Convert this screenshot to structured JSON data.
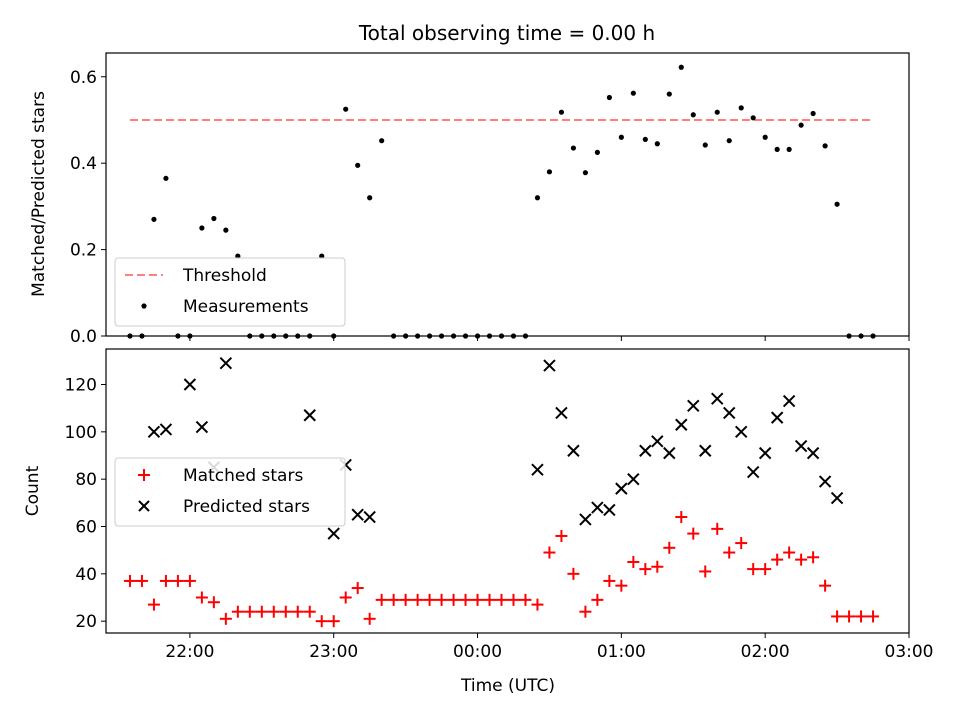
{
  "chart_data": [
    {
      "type": "scatter",
      "title": "Total observing time = 0.00 h",
      "ylabel": "Matched/Predicted stars",
      "xlabel": "",
      "xlim": [
        "21:25",
        "03:00"
      ],
      "ylim": [
        0,
        0.655
      ],
      "yticks": [
        "0.0",
        "0.2",
        "0.4",
        "0.6"
      ],
      "legend_position": "lower-left",
      "threshold": {
        "name": "Threshold",
        "value": 0.5,
        "x_start": "21:35",
        "x_end": "02:45",
        "color": "#ff7f7f",
        "style": "dashed"
      },
      "series": [
        {
          "name": "Measurements",
          "color": "#000000",
          "marker": "dot",
          "x": [
            "21:35",
            "21:40",
            "21:45",
            "21:50",
            "21:55",
            "22:00",
            "22:05",
            "22:10",
            "22:15",
            "22:20",
            "22:25",
            "22:30",
            "22:35",
            "22:40",
            "22:45",
            "22:50",
            "22:55",
            "23:00",
            "23:05",
            "23:10",
            "23:15",
            "23:20",
            "23:25",
            "23:30",
            "23:35",
            "23:40",
            "23:45",
            "23:50",
            "23:55",
            "00:00",
            "00:05",
            "00:10",
            "00:15",
            "00:20",
            "00:25",
            "00:30",
            "00:35",
            "00:40",
            "00:45",
            "00:50",
            "00:55",
            "01:00",
            "01:05",
            "01:10",
            "01:15",
            "01:20",
            "01:25",
            "01:30",
            "01:35",
            "01:40",
            "01:45",
            "01:50",
            "01:55",
            "02:00",
            "02:05",
            "02:10",
            "02:15",
            "02:20",
            "02:25",
            "02:30",
            "02:35",
            "02:40",
            "02:45"
          ],
          "y": [
            0.0,
            0.0,
            0.27,
            0.365,
            0.0,
            0.0,
            0.25,
            0.272,
            0.245,
            0.185,
            0.0,
            0.0,
            0.0,
            0.0,
            0.0,
            0.0,
            0.185,
            0.0,
            0.525,
            0.395,
            0.32,
            0.452,
            0.0,
            0.0,
            0.0,
            0.0,
            0.0,
            0.0,
            0.0,
            0.0,
            0.0,
            0.0,
            0.0,
            0.0,
            0.32,
            0.38,
            0.518,
            0.435,
            0.378,
            0.425,
            0.552,
            0.46,
            0.562,
            0.455,
            0.445,
            0.56,
            0.622,
            0.512,
            0.442,
            0.518,
            0.452,
            0.528,
            0.505,
            0.46,
            0.432,
            0.432,
            0.488,
            0.515,
            0.44,
            0.305,
            0.0,
            0.0,
            0.0
          ]
        }
      ]
    },
    {
      "type": "scatter",
      "title": "",
      "ylabel": "Count",
      "xlabel": "Time (UTC)",
      "xlim": [
        "21:25",
        "03:00"
      ],
      "ylim": [
        15,
        135
      ],
      "yticks": [
        "20",
        "40",
        "60",
        "80",
        "100",
        "120"
      ],
      "xticks": [
        "22:00",
        "23:00",
        "00:00",
        "01:00",
        "02:00",
        "03:00"
      ],
      "legend_position": "center-left",
      "series": [
        {
          "name": "Matched stars",
          "color": "#ff0000",
          "marker": "plus",
          "x": [
            "21:35",
            "21:40",
            "21:45",
            "21:50",
            "21:55",
            "22:00",
            "22:05",
            "22:10",
            "22:15",
            "22:20",
            "22:25",
            "22:30",
            "22:35",
            "22:40",
            "22:45",
            "22:50",
            "22:55",
            "23:00",
            "23:05",
            "23:10",
            "23:15",
            "23:20",
            "23:25",
            "23:30",
            "23:35",
            "23:40",
            "23:45",
            "23:50",
            "23:55",
            "00:00",
            "00:05",
            "00:10",
            "00:15",
            "00:20",
            "00:25",
            "00:30",
            "00:35",
            "00:40",
            "00:45",
            "00:50",
            "00:55",
            "01:00",
            "01:05",
            "01:10",
            "01:15",
            "01:20",
            "01:25",
            "01:30",
            "01:35",
            "01:40",
            "01:45",
            "01:50",
            "01:55",
            "02:00",
            "02:05",
            "02:10",
            "02:15",
            "02:20",
            "02:25",
            "02:30",
            "02:35",
            "02:40",
            "02:45"
          ],
          "y": [
            37,
            37,
            27,
            37,
            37,
            37,
            30,
            28,
            21,
            24,
            24,
            24,
            24,
            24,
            24,
            24,
            20,
            20,
            30,
            34,
            21,
            29,
            29,
            29,
            29,
            29,
            29,
            29,
            29,
            29,
            29,
            29,
            29,
            29,
            27,
            49,
            56,
            40,
            24,
            29,
            37,
            35,
            45,
            42,
            43,
            51,
            64,
            57,
            41,
            59,
            49,
            53,
            42,
            42,
            46,
            49,
            46,
            47,
            35,
            22,
            22,
            22,
            22
          ]
        },
        {
          "name": "Predicted stars",
          "color": "#000000",
          "marker": "x",
          "x": [
            "21:35",
            "21:40",
            "21:45",
            "21:50",
            "21:55",
            "22:00",
            "22:05",
            "22:10",
            "22:15",
            "22:20",
            "22:25",
            "22:30",
            "22:35",
            "22:40",
            "22:45",
            "22:50",
            "22:55",
            "23:00",
            "23:05",
            "23:10",
            "23:15",
            "23:20",
            "23:25",
            "23:30",
            "23:35",
            "23:40",
            "23:45",
            "23:50",
            "23:55",
            "00:00",
            "00:05",
            "00:10",
            "00:15",
            "00:20",
            "00:25",
            "00:30",
            "00:35",
            "00:40",
            "00:45",
            "00:50",
            "00:55",
            "01:00",
            "01:05",
            "01:10",
            "01:15",
            "01:20",
            "01:25",
            "01:30",
            "01:35",
            "01:40",
            "01:45",
            "01:50",
            "01:55",
            "02:00",
            "02:05",
            "02:10",
            "02:15",
            "02:20",
            "02:25",
            "02:30",
            "02:35",
            "02:40",
            "02:45"
          ],
          "y": [
            null,
            null,
            100,
            101,
            null,
            120,
            102,
            85,
            129,
            null,
            null,
            null,
            null,
            null,
            null,
            107,
            null,
            57,
            86,
            65,
            64,
            null,
            null,
            null,
            null,
            null,
            null,
            null,
            null,
            null,
            null,
            null,
            null,
            null,
            84,
            128,
            108,
            92,
            63,
            68,
            67,
            76,
            80,
            92,
            96,
            91,
            103,
            111,
            92,
            114,
            108,
            100,
            83,
            91,
            106,
            113,
            94,
            91,
            79,
            72,
            null,
            null,
            null
          ]
        }
      ]
    }
  ]
}
